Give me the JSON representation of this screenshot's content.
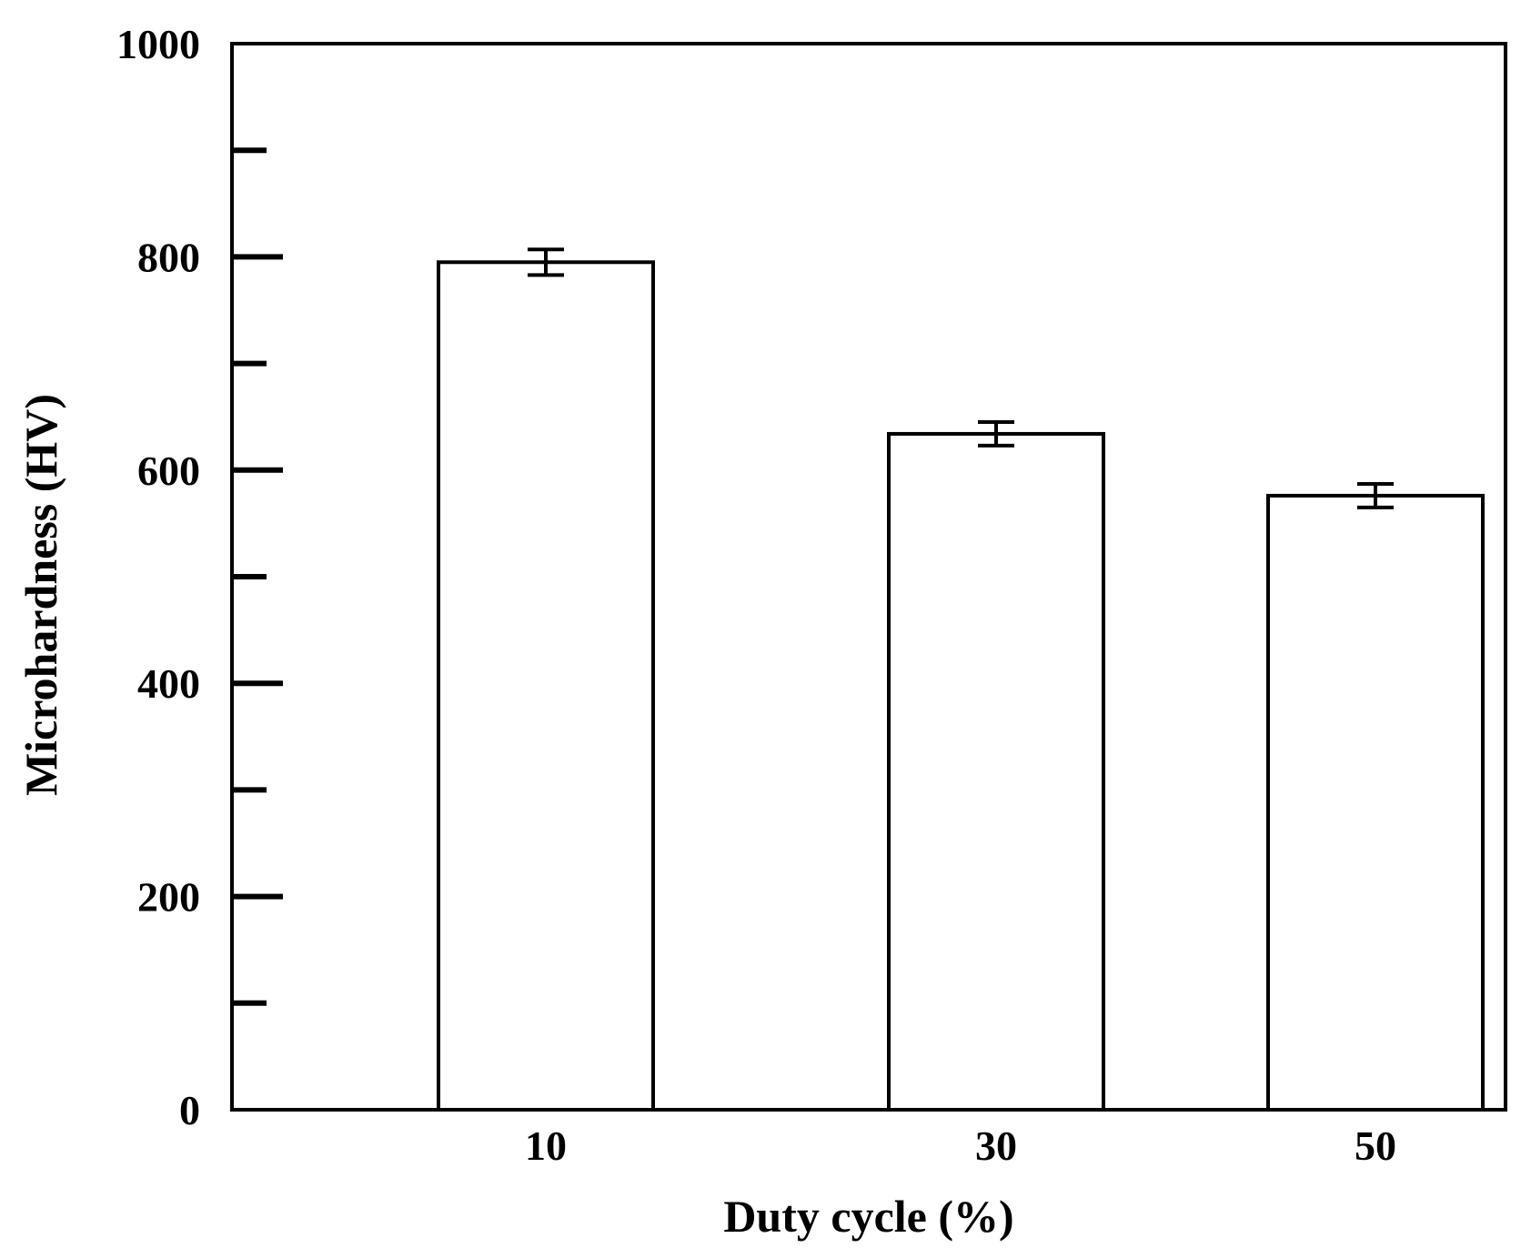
{
  "chart_data": {
    "type": "bar",
    "xlabel": "Duty cycle (%)",
    "ylabel": "Microhardness (HV)",
    "categories": [
      "10",
      "30",
      "50"
    ],
    "values": [
      795,
      634,
      576
    ],
    "errors": [
      12,
      11,
      11
    ],
    "ylim": [
      0,
      1000
    ],
    "yticks": [
      0,
      200,
      400,
      600,
      800,
      1000
    ],
    "yminor_ticks": [
      100,
      300,
      500,
      700,
      900
    ],
    "grid": false,
    "legend": "none",
    "bar_fill": "#ffffff",
    "bar_edge": "#000000"
  }
}
